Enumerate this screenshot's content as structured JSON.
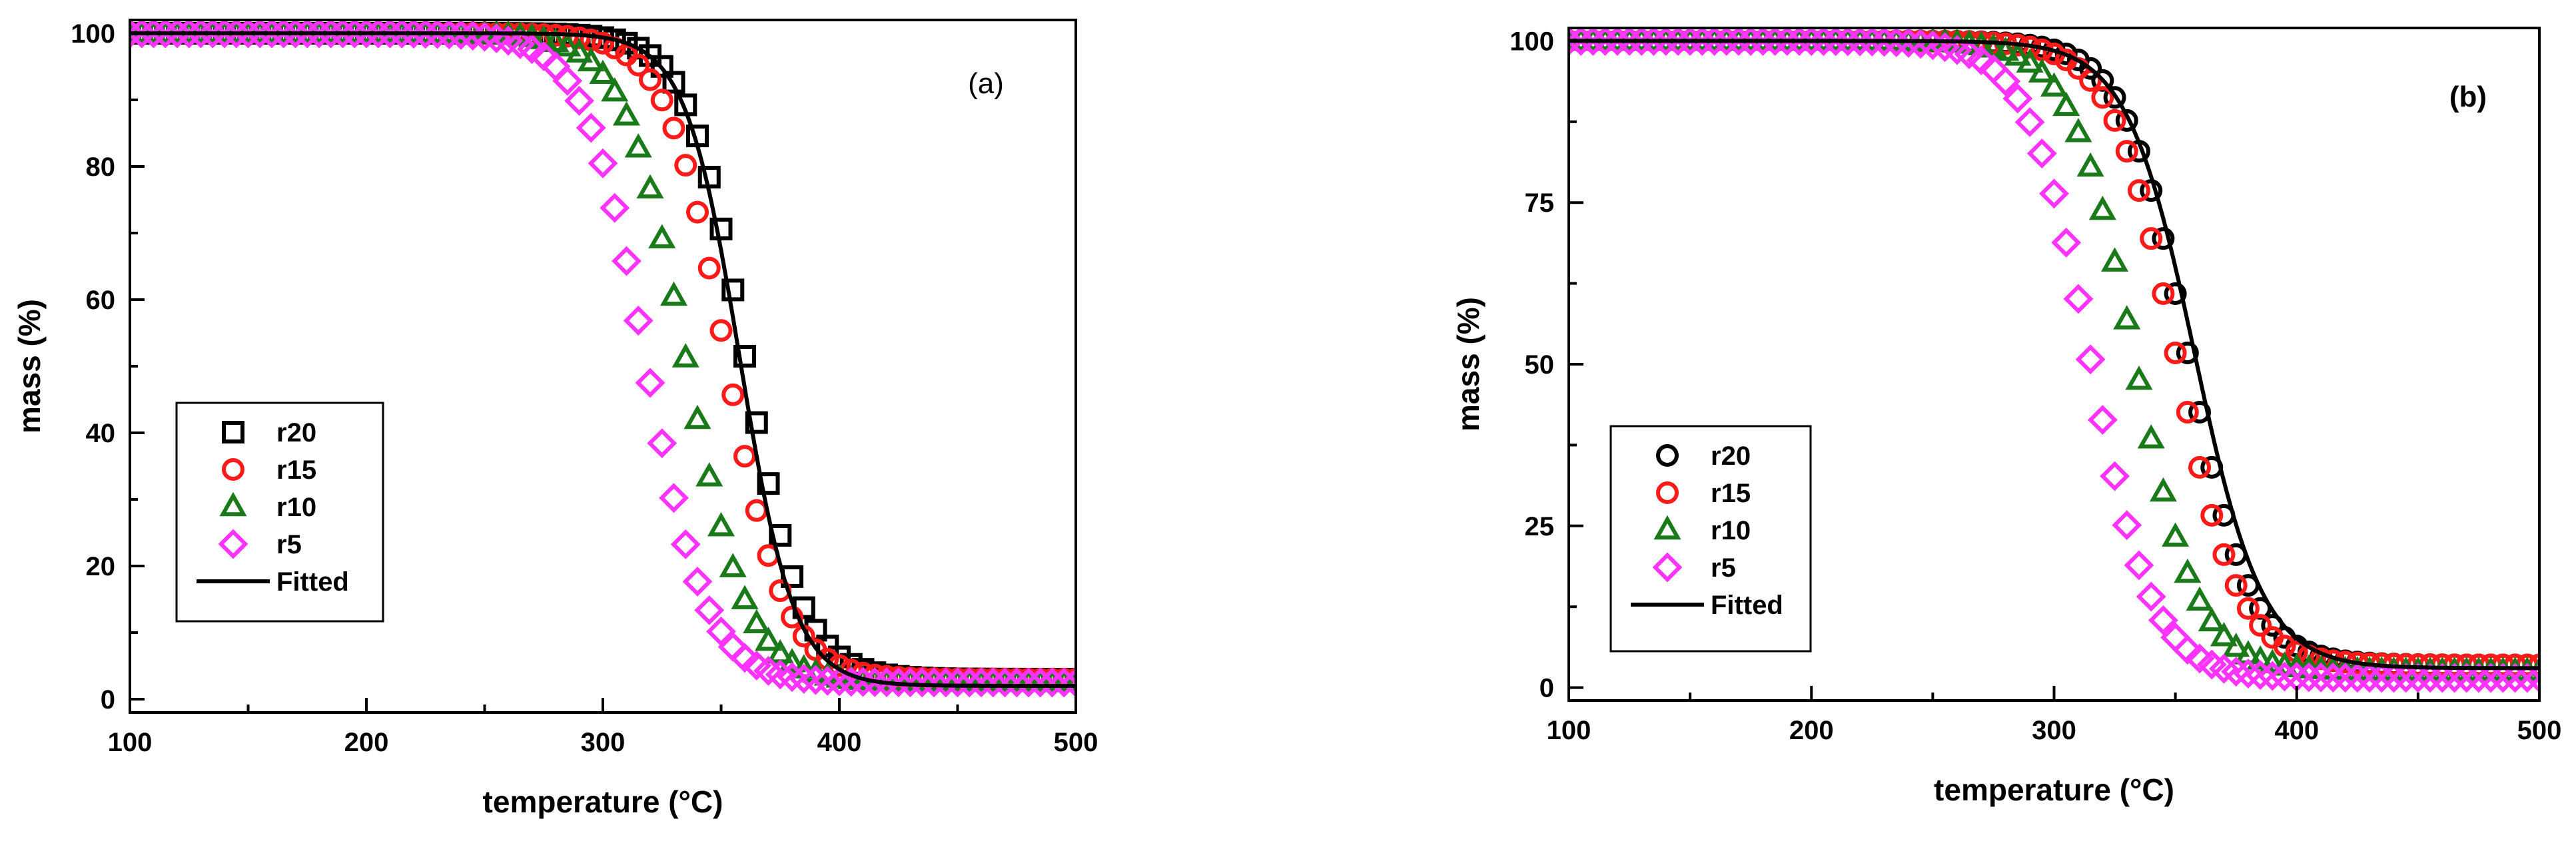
{
  "chart_data": [
    {
      "type": "scatter",
      "panel_label": "(a)",
      "xlabel": "temperature (°C)",
      "ylabel": "mass (%)",
      "xlim": [
        100,
        500
      ],
      "ylim": [
        -2,
        102
      ],
      "xticks": [
        100,
        200,
        300,
        400,
        500
      ],
      "yticks": [
        0,
        20,
        40,
        60,
        80,
        100
      ],
      "grid": false,
      "legend_position": "bottom-left",
      "legend": [
        "r20",
        "r15",
        "r10",
        "r5",
        "Fitted"
      ],
      "series": [
        {
          "name": "r20",
          "marker": "square",
          "color": "#000000",
          "final_mass": 3,
          "t_mid": 360,
          "width": 12,
          "x_step": 5
        },
        {
          "name": "r15",
          "marker": "circle",
          "color": "#ff1a1a",
          "final_mass": 3,
          "t_mid": 352,
          "width": 12.5,
          "x_step": 5
        },
        {
          "name": "r10",
          "marker": "triangle",
          "color": "#1a7a1a",
          "final_mass": 2.5,
          "t_mid": 335,
          "width": 13,
          "x_step": 5
        },
        {
          "name": "r5",
          "marker": "diamond",
          "color": "#ff33ff",
          "final_mass": 2.5,
          "t_mid": 318,
          "width": 13,
          "x_step": 5
        }
      ],
      "fitted": {
        "name": "Fitted",
        "color": "#000000",
        "final_mass": 2,
        "t_mid": 358,
        "width": 11.5
      }
    },
    {
      "type": "scatter",
      "panel_label": "(b)",
      "xlabel": "temperature (°C)",
      "ylabel": "mass (%)",
      "xlim": [
        100,
        500
      ],
      "ylim": [
        -2,
        102
      ],
      "xticks": [
        100,
        200,
        300,
        400,
        500
      ],
      "yticks": [
        0,
        25,
        50,
        75,
        100
      ],
      "grid": false,
      "legend_position": "bottom-left",
      "legend": [
        "r20",
        "r15",
        "r10",
        "r5",
        "Fitted"
      ],
      "series": [
        {
          "name": "r20",
          "marker": "circle",
          "color": "#000000",
          "final_mass": 3.5,
          "t_mid": 355,
          "width": 13,
          "x_step": 5
        },
        {
          "name": "r15",
          "marker": "circle",
          "color": "#ff1a1a",
          "final_mass": 3.5,
          "t_mid": 350,
          "width": 13,
          "x_step": 5
        },
        {
          "name": "r10",
          "marker": "triangle",
          "color": "#1a7a1a",
          "final_mass": 2.5,
          "t_mid": 333,
          "width": 13,
          "x_step": 5
        },
        {
          "name": "r5",
          "marker": "diamond",
          "color": "#ff33ff",
          "final_mass": 1.5,
          "t_mid": 315,
          "width": 13,
          "x_step": 5
        }
      ],
      "fitted": {
        "name": "Fitted",
        "color": "#000000",
        "final_mass": 3,
        "t_mid": 358,
        "width": 14
      }
    }
  ]
}
